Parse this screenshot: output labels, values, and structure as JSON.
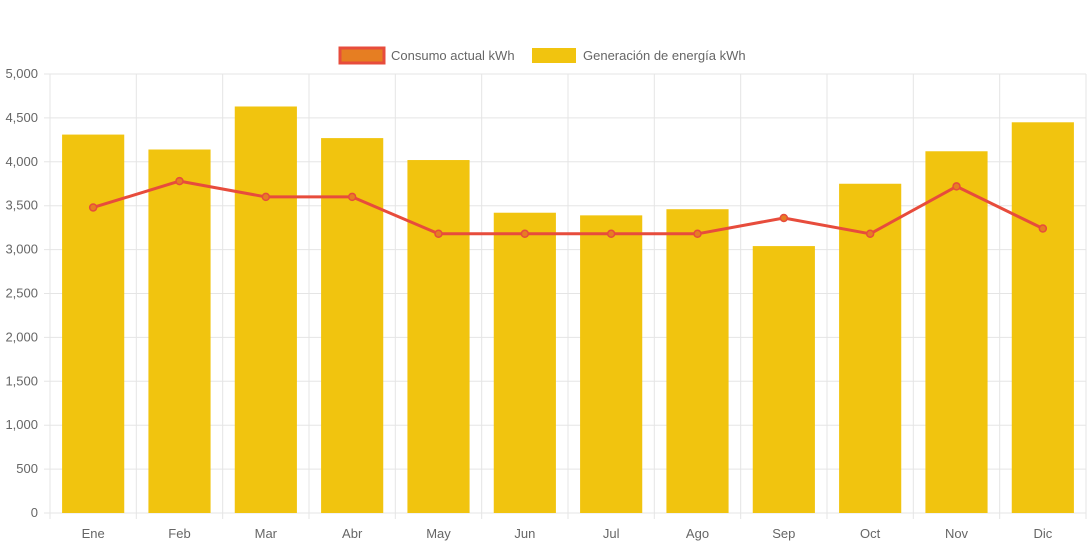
{
  "chart_data": {
    "type": "bar",
    "categories": [
      "Ene",
      "Feb",
      "Mar",
      "Abr",
      "May",
      "Jun",
      "Jul",
      "Ago",
      "Sep",
      "Oct",
      "Nov",
      "Dic"
    ],
    "series": [
      {
        "name": "Consumo actual kWh",
        "type": "line",
        "color": "#e74c3c",
        "point_color": "#e67e22",
        "values": [
          3480,
          3780,
          3600,
          3600,
          3180,
          3180,
          3180,
          3180,
          3360,
          3180,
          3720,
          3240
        ]
      },
      {
        "name": "Generación de energía kWh",
        "type": "bar",
        "color": "#f1c40f",
        "values": [
          4310,
          4140,
          4630,
          4270,
          4020,
          3420,
          3390,
          3460,
          3040,
          3750,
          4120,
          4450
        ]
      }
    ],
    "ylim": [
      0,
      5000
    ],
    "yticks": [
      "0",
      "500",
      "1,000",
      "1,500",
      "2,000",
      "2,500",
      "3,000",
      "3,500",
      "4,000",
      "4,500",
      "5,000"
    ],
    "ytick_values": [
      0,
      500,
      1000,
      1500,
      2000,
      2500,
      3000,
      3500,
      4000,
      4500,
      5000
    ],
    "grid": true,
    "legend_position": "top-center"
  }
}
